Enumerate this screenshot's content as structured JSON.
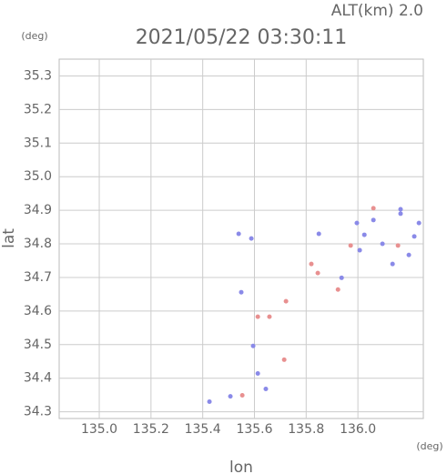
{
  "chart_data": {
    "type": "scatter",
    "title": "2021/05/22 03:30:11",
    "annotation": "ALT(km)  2.0",
    "y_unit": "(deg)",
    "x_unit": "(deg)",
    "xlabel": "lon",
    "ylabel": "lat",
    "xlim": [
      134.845,
      136.253
    ],
    "ylim": [
      34.28,
      35.35
    ],
    "xticks": [
      {
        "value": 135,
        "label": "135.0"
      },
      135.2,
      135.4,
      135.6,
      135.8,
      {
        "value": 136,
        "label": "136.0"
      }
    ],
    "yticks": [
      34.3,
      34.4,
      34.5,
      34.6,
      34.7,
      34.8,
      34.9,
      {
        "value": 35,
        "label": "35.0"
      },
      35.1,
      35.2,
      35.3
    ],
    "grid": true,
    "series": [
      {
        "color": "#8a8ae8",
        "x": [
          135.426,
          135.507,
          135.539,
          135.588,
          135.549,
          135.595,
          135.613,
          135.644,
          135.849,
          135.937,
          135.996,
          136.06,
          136.165,
          136.218,
          136.025,
          136.095,
          136.165,
          136.134,
          136.197,
          136.007,
          136.236
        ],
        "y": [
          34.33,
          34.346,
          34.83,
          34.816,
          34.656,
          34.496,
          34.414,
          34.368,
          34.83,
          34.699,
          34.862,
          34.871,
          34.89,
          34.822,
          34.827,
          34.8,
          34.903,
          34.74,
          34.767,
          34.781,
          34.862
        ]
      },
      {
        "color": "#e89090",
        "x": [
          135.553,
          135.613,
          135.658,
          135.715,
          135.722,
          135.82,
          135.845,
          135.923,
          136.155,
          136.06,
          135.972
        ],
        "y": [
          34.349,
          34.583,
          34.583,
          34.455,
          34.629,
          34.74,
          34.713,
          34.664,
          34.795,
          34.906,
          34.795
        ]
      }
    ]
  }
}
